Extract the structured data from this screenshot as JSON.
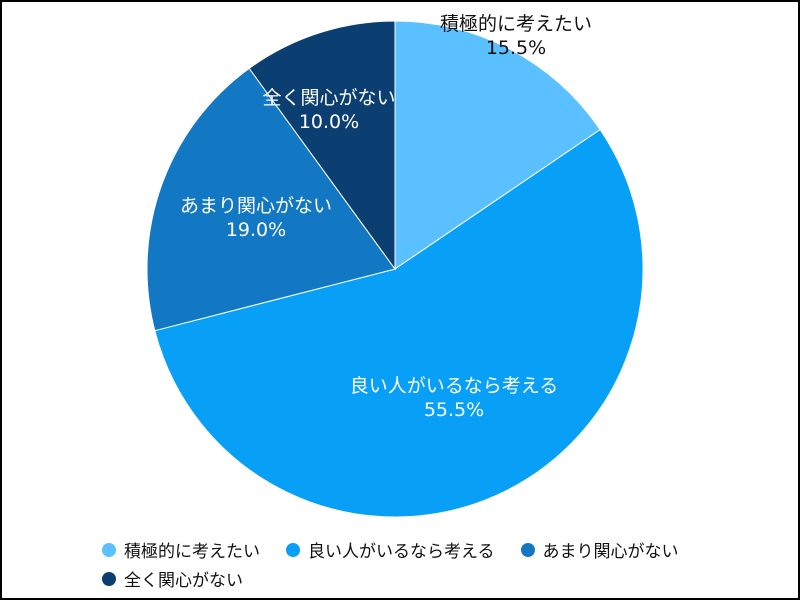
{
  "chart_data": {
    "type": "pie",
    "title": "",
    "start_angle_deg": 0,
    "direction": "clockwise",
    "legend_position": "bottom",
    "slices": [
      {
        "label": "積極的に考えたい",
        "value": 15.5,
        "display": "15.5%",
        "color": "#5bc0ff"
      },
      {
        "label": "良い人がいるなら考える",
        "value": 55.5,
        "display": "55.5%",
        "color": "#08a0f7"
      },
      {
        "label": "あまり関心がない",
        "value": 19.0,
        "display": "19.0%",
        "color": "#1378c4"
      },
      {
        "label": "全く関心がない",
        "value": 10.0,
        "display": "10.0%",
        "color": "#0b3e71"
      }
    ]
  }
}
